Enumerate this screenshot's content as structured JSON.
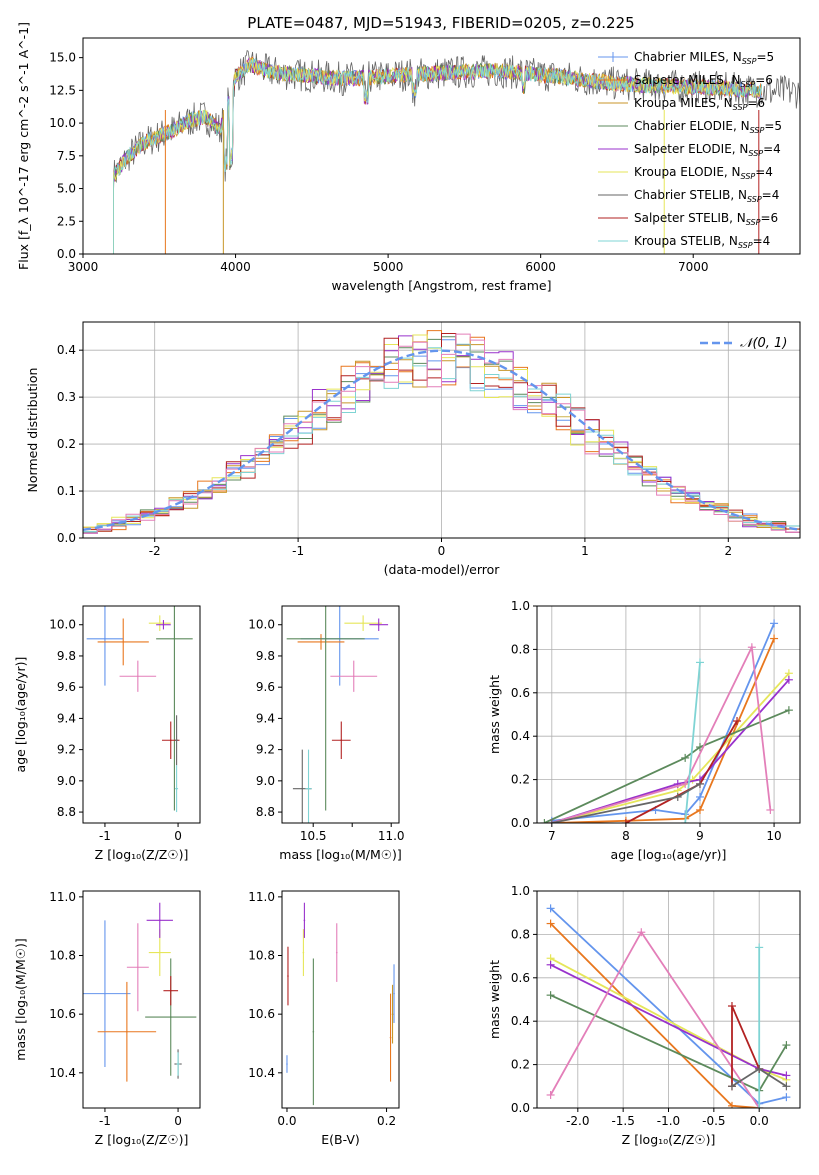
{
  "series_styles": [
    {
      "name": "Chabrier MILES, N$_{SSP}$=5",
      "label_main": "Chabrier MILES, N",
      "label_sub": "SSP",
      "label_tail": "=5",
      "color": "#6495ed"
    },
    {
      "name": "Salpeter MILES, N$_{SSP}$=6",
      "label_main": "Salpeter MILES, N",
      "label_sub": "SSP",
      "label_tail": "=6",
      "color": "#e8771e"
    },
    {
      "name": "Kroupa MILES, N$_{SSP}$=6",
      "label_main": "Kroupa MILES, N",
      "label_sub": "SSP",
      "label_tail": "=6",
      "color": "#c8962a"
    },
    {
      "name": "Chabrier ELODIE, N$_{SSP}$=5",
      "label_main": "Chabrier ELODIE, N",
      "label_sub": "SSP",
      "label_tail": "=5",
      "color": "#5c8a5c"
    },
    {
      "name": "Salpeter ELODIE, N$_{SSP}$=4",
      "label_main": "Salpeter ELODIE, N",
      "label_sub": "SSP",
      "label_tail": "=4",
      "color": "#9932cc"
    },
    {
      "name": "Kroupa ELODIE, N$_{SSP}$=4",
      "label_main": "Kroupa ELODIE, N",
      "label_sub": "SSP",
      "label_tail": "=4",
      "color": "#e6e65a"
    },
    {
      "name": "Chabrier STELIB, N$_{SSP}$=4",
      "label_main": "Chabrier STELIB, N",
      "label_sub": "SSP",
      "label_tail": "=4",
      "color": "#666666"
    },
    {
      "name": "Salpeter STELIB, N$_{SSP}$=6",
      "label_main": "Salpeter STELIB, N",
      "label_sub": "SSP",
      "label_tail": "=6",
      "color": "#b22222"
    },
    {
      "name": "Kroupa STELIB, N$_{SSP}$=4",
      "label_main": "Kroupa STELIB, N",
      "label_sub": "SSP",
      "label_tail": "=4",
      "color": "#7fd4d4"
    }
  ],
  "extra_colors": {
    "pink": "#e37fb9",
    "normal_curve": "#6495ed"
  },
  "chart_data": [
    {
      "id": "spectrum",
      "type": "line",
      "title": "PLATE=0487, MJD=51943, FIBERID=0205, z=0.225",
      "xlabel": "wavelength [Angstrom, rest frame]",
      "ylabel": "Flux [f",
      "ylabel_full": "Flux [f_λ 10^-17 erg cm^-2 s^-1 A^-1]",
      "xlim": [
        3000,
        7700
      ],
      "ylim": [
        0,
        16.5
      ],
      "xticks": [
        3000,
        4000,
        5000,
        6000,
        7000
      ],
      "yticks": [
        0.0,
        2.5,
        5.0,
        7.5,
        10.0,
        12.5,
        15.0
      ],
      "legend": "upper right",
      "grid": false,
      "shape_x": [
        3200,
        3300,
        3400,
        3500,
        3600,
        3700,
        3800,
        3900,
        3950,
        4000,
        4100,
        4200,
        4300,
        4500,
        4700,
        4900,
        5100,
        5300,
        5500,
        5700,
        5900,
        6100,
        6300,
        6500,
        6700,
        6900,
        7100,
        7300,
        7500
      ],
      "shape_y": [
        6.0,
        7.5,
        8.5,
        9.0,
        9.5,
        10.2,
        10.5,
        9.5,
        11.5,
        13.5,
        14.5,
        14.0,
        13.8,
        13.6,
        13.4,
        13.5,
        13.7,
        13.8,
        13.9,
        14.0,
        13.8,
        13.6,
        13.3,
        13.0,
        12.9,
        12.8,
        12.7,
        12.6,
        12.4
      ]
    },
    {
      "id": "residual-hist",
      "type": "histogram",
      "xlabel": "(data-model)/error",
      "ylabel": "Normed distribution",
      "xlim": [
        -2.5,
        2.5
      ],
      "ylim": [
        0,
        0.46
      ],
      "xticks": [
        -2,
        -1,
        0,
        1,
        2
      ],
      "yticks": [
        0.0,
        0.1,
        0.2,
        0.3,
        0.4
      ],
      "grid": true,
      "legend_entry": "𝒩(0, 1)",
      "legend": "upper right",
      "bin_start": -2.5,
      "bin_width": 0.1
    },
    {
      "id": "age-vs-z",
      "type": "scatter",
      "xlabel": "Z [log₁₀(Z/Z☉)]",
      "ylabel": "age  [log₁₀(age/yr)]",
      "xlim": [
        -1.3,
        0.3
      ],
      "ylim": [
        8.73,
        10.12
      ],
      "xticks": [
        -1,
        0
      ],
      "yticks": [
        8.8,
        9.0,
        9.2,
        9.4,
        9.6,
        9.8,
        10.0
      ],
      "points": [
        {
          "series": 0,
          "x": -1.0,
          "y": 9.91,
          "xerr": 0.25,
          "yerr": 0.3
        },
        {
          "series": 1,
          "x": -0.75,
          "y": 9.89,
          "xerr": 0.35,
          "yerr": 0.15
        },
        {
          "series": 5,
          "x": -0.25,
          "y": 10.01,
          "xerr": 0.15,
          "yerr": 0.05
        },
        {
          "series": 4,
          "x": -0.2,
          "y": 10.0,
          "xerr": 0.1,
          "yerr": 0.03
        },
        {
          "series": 3,
          "x": -0.05,
          "y": 9.91,
          "xerr": 0.25,
          "yerr": 1.1
        },
        {
          "series": 9,
          "x": -0.55,
          "y": 9.67,
          "xerr": 0.25,
          "yerr": 0.1
        },
        {
          "series": 7,
          "x": -0.1,
          "y": 9.26,
          "xerr": 0.12,
          "yerr": 0.12
        },
        {
          "series": 6,
          "x": -0.02,
          "y": 9.26,
          "xerr": 0.02,
          "yerr": 0.16
        },
        {
          "series": 8,
          "x": -0.02,
          "y": 8.95,
          "xerr": 0.02,
          "yerr": 0.15
        }
      ]
    },
    {
      "id": "age-vs-mass",
      "type": "scatter",
      "xlabel": "mass [log₁₀(M/M☉)]",
      "ylabel": "",
      "xlim": [
        10.3,
        11.05
      ],
      "ylim": [
        8.73,
        10.12
      ],
      "xticks": [
        10.5,
        10.75,
        11.0
      ],
      "xtick_labels": [
        "10.5",
        "",
        "11.0"
      ],
      "yticks": [
        8.8,
        9.0,
        9.2,
        9.4,
        9.6,
        9.8,
        10.0
      ],
      "points": [
        {
          "series": 0,
          "x": 10.67,
          "y": 9.91,
          "xerr": 0.25,
          "yerr": 0.3
        },
        {
          "series": 1,
          "x": 10.55,
          "y": 9.89,
          "xerr": 0.15,
          "yerr": 0.05
        },
        {
          "series": 3,
          "x": 10.58,
          "y": 9.91,
          "xerr": 0.25,
          "yerr": 1.1
        },
        {
          "series": 5,
          "x": 10.82,
          "y": 10.01,
          "xerr": 0.12,
          "yerr": 0.05
        },
        {
          "series": 4,
          "x": 10.92,
          "y": 10.0,
          "xerr": 0.06,
          "yerr": 0.04
        },
        {
          "series": 9,
          "x": 10.76,
          "y": 9.67,
          "xerr": 0.15,
          "yerr": 0.1
        },
        {
          "series": 7,
          "x": 10.68,
          "y": 9.26,
          "xerr": 0.06,
          "yerr": 0.12
        },
        {
          "series": 6,
          "x": 10.43,
          "y": 8.95,
          "xerr": 0.06,
          "yerr": 0.25
        },
        {
          "series": 8,
          "x": 10.47,
          "y": 8.95,
          "xerr": 0.02,
          "yerr": 0.25
        }
      ]
    },
    {
      "id": "mass-weight-vs-age",
      "type": "line",
      "xlabel": "age  [log₁₀(age/yr)]",
      "ylabel": "mass weight",
      "xlim": [
        6.8,
        10.35
      ],
      "ylim": [
        0,
        1
      ],
      "xticks": [
        7,
        8,
        9,
        10
      ],
      "yticks": [
        0.0,
        0.2,
        0.4,
        0.6,
        0.8,
        1.0
      ],
      "grid": true,
      "series": [
        {
          "series": 0,
          "x": [
            7.0,
            8.4,
            8.8,
            9.0,
            10.0
          ],
          "y": [
            0.01,
            0.06,
            0.04,
            0.12,
            0.92
          ]
        },
        {
          "series": 1,
          "x": [
            7.0,
            8.0,
            8.8,
            9.0,
            10.0
          ],
          "y": [
            0.0,
            0.01,
            0.02,
            0.06,
            0.85
          ]
        },
        {
          "series": 5,
          "x": [
            7.0,
            8.7,
            8.9,
            10.2
          ],
          "y": [
            0.0,
            0.15,
            0.2,
            0.69
          ]
        },
        {
          "series": 4,
          "x": [
            7.0,
            8.7,
            9.0,
            10.2
          ],
          "y": [
            0.0,
            0.18,
            0.2,
            0.66
          ]
        },
        {
          "series": 3,
          "x": [
            6.9,
            8.8,
            9.0,
            10.2
          ],
          "y": [
            0.0,
            0.3,
            0.35,
            0.52
          ]
        },
        {
          "series": 9,
          "x": [
            7.0,
            8.8,
            9.7,
            9.95
          ],
          "y": [
            0.0,
            0.18,
            0.81,
            0.06
          ]
        },
        {
          "series": 8,
          "x": [
            8.8,
            9.0
          ],
          "y": [
            0.0,
            0.74
          ]
        },
        {
          "series": 7,
          "x": [
            8.0,
            9.0,
            9.5
          ],
          "y": [
            0.0,
            0.18,
            0.47
          ]
        },
        {
          "series": 6,
          "x": [
            7.0,
            8.7,
            9.0
          ],
          "y": [
            0.0,
            0.12,
            0.18
          ]
        }
      ]
    },
    {
      "id": "mass-vs-z",
      "type": "scatter",
      "xlabel": "Z [log₁₀(Z/Z☉)]",
      "ylabel": "mass [log₁₀(M/M☉)]",
      "xlim": [
        -1.3,
        0.3
      ],
      "ylim": [
        10.28,
        11.02
      ],
      "xticks": [
        -1,
        0
      ],
      "yticks": [
        10.4,
        10.6,
        10.8,
        11.0
      ],
      "points": [
        {
          "series": 0,
          "x": -1.0,
          "y": 10.67,
          "xerr": 0.35,
          "yerr": 0.25
        },
        {
          "series": 1,
          "x": -0.7,
          "y": 10.54,
          "xerr": 0.4,
          "yerr": 0.17
        },
        {
          "series": 9,
          "x": -0.55,
          "y": 10.76,
          "xerr": 0.15,
          "yerr": 0.15
        },
        {
          "series": 5,
          "x": -0.25,
          "y": 10.81,
          "xerr": 0.15,
          "yerr": 0.08
        },
        {
          "series": 4,
          "x": -0.25,
          "y": 10.92,
          "xerr": 0.18,
          "yerr": 0.06
        },
        {
          "series": 3,
          "x": -0.1,
          "y": 10.59,
          "xerr": 0.35,
          "yerr": 0.2
        },
        {
          "series": 7,
          "x": -0.1,
          "y": 10.68,
          "xerr": 0.1,
          "yerr": 0.05
        },
        {
          "series": 6,
          "x": 0.0,
          "y": 10.43,
          "xerr": 0.05,
          "yerr": 0.05
        },
        {
          "series": 8,
          "x": 0.0,
          "y": 10.43,
          "xerr": 0.02,
          "yerr": 0.04
        }
      ]
    },
    {
      "id": "mass-vs-ebv",
      "type": "scatter",
      "xlabel": "E(B-V)",
      "ylabel": "",
      "xlim": [
        -0.01,
        0.225
      ],
      "ylim": [
        10.28,
        11.02
      ],
      "xticks": [
        0.0,
        0.2
      ],
      "yticks": [
        10.4,
        10.6,
        10.8,
        11.0
      ],
      "points": [
        {
          "series": 0,
          "x": 0.0,
          "y": 10.43,
          "yerr": 0.03
        },
        {
          "series": 7,
          "x": 0.002,
          "y": 10.73,
          "yerr": 0.1
        },
        {
          "series": 5,
          "x": 0.033,
          "y": 10.81,
          "yerr": 0.08
        },
        {
          "series": 4,
          "x": 0.035,
          "y": 10.92,
          "yerr": 0.06
        },
        {
          "series": 3,
          "x": 0.053,
          "y": 10.54,
          "yerr": 0.25
        },
        {
          "series": 9,
          "x": 0.1,
          "y": 10.81,
          "yerr": 0.1
        },
        {
          "series": 1,
          "x": 0.208,
          "y": 10.52,
          "yerr": 0.15
        },
        {
          "series": 2,
          "x": 0.212,
          "y": 10.6,
          "yerr": 0.1
        },
        {
          "series": 0,
          "x": 0.215,
          "y": 10.67,
          "yerr": 0.1
        }
      ]
    },
    {
      "id": "mass-weight-vs-z",
      "type": "line",
      "xlabel": "Z [log₁₀(Z/Z☉)]",
      "ylabel": "mass weight",
      "xlim": [
        -2.45,
        0.45
      ],
      "ylim": [
        0,
        1
      ],
      "xticks": [
        -2.0,
        -1.5,
        -1.0,
        -0.5,
        0.0
      ],
      "yticks": [
        0.0,
        0.2,
        0.4,
        0.6,
        0.8,
        1.0
      ],
      "grid": true,
      "series": [
        {
          "series": 0,
          "x": [
            -2.3,
            0.0,
            0.3
          ],
          "y": [
            0.92,
            0.02,
            0.05
          ]
        },
        {
          "series": 1,
          "x": [
            -2.3,
            -0.3,
            0.0
          ],
          "y": [
            0.85,
            0.01,
            0.0
          ]
        },
        {
          "series": 5,
          "x": [
            -2.3,
            0.0,
            0.3
          ],
          "y": [
            0.69,
            0.18,
            0.13
          ]
        },
        {
          "series": 4,
          "x": [
            -2.3,
            0.0,
            0.3
          ],
          "y": [
            0.66,
            0.18,
            0.15
          ]
        },
        {
          "series": 3,
          "x": [
            -2.3,
            0.0,
            0.3
          ],
          "y": [
            0.52,
            0.08,
            0.29
          ]
        },
        {
          "series": 9,
          "x": [
            -2.3,
            -1.3,
            0.0
          ],
          "y": [
            0.06,
            0.81,
            0.0
          ]
        },
        {
          "series": 8,
          "x": [
            0.0,
            0.0
          ],
          "y": [
            0.0,
            0.74
          ]
        },
        {
          "series": 7,
          "x": [
            -0.3,
            -0.3,
            0.0
          ],
          "y": [
            0.1,
            0.47,
            0.18
          ]
        },
        {
          "series": 6,
          "x": [
            -0.3,
            0.0,
            0.3
          ],
          "y": [
            0.1,
            0.18,
            0.1
          ]
        }
      ]
    }
  ]
}
